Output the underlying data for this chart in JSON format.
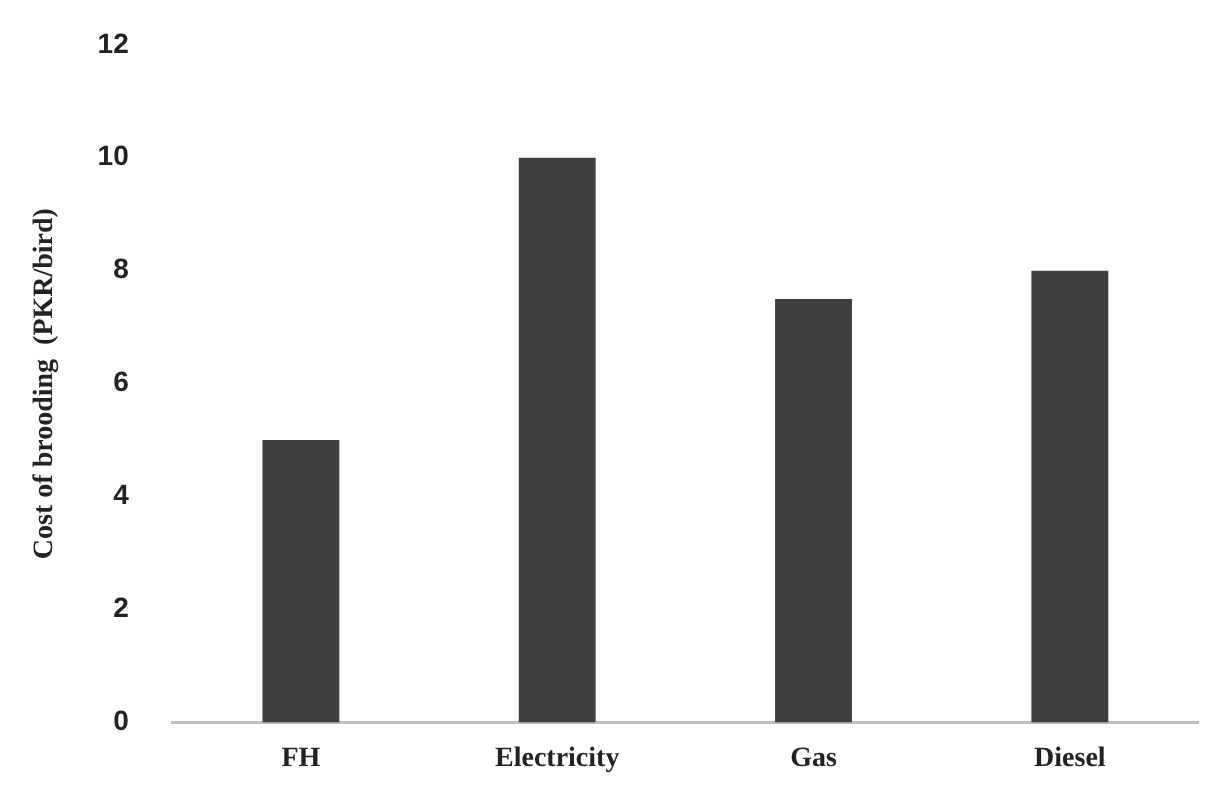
{
  "chart_data": {
    "type": "bar",
    "ylabel": "Cost of brooding  (PKR/bird)",
    "categories": [
      "FH",
      "Electricity",
      "Gas",
      "Diesel"
    ],
    "values": [
      5,
      10,
      7.5,
      8
    ],
    "color": "#404040",
    "ylim": [
      0,
      12
    ],
    "yticks": [
      0,
      2,
      4,
      6,
      8,
      10,
      12
    ],
    "grid": false,
    "legend": false
  }
}
